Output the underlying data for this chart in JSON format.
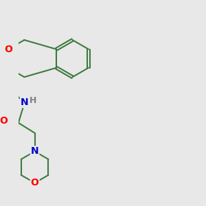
{
  "background_color": "#e8e8e8",
  "bond_color": "#3d7a3d",
  "bond_width": 1.5,
  "atom_colors": {
    "O": "#ff0000",
    "N": "#0000cc",
    "H": "#808080",
    "C": "#3d7a3d"
  },
  "font_size_hetero": 10,
  "font_size_H": 9,
  "figsize": [
    3.0,
    3.0
  ],
  "dpi": 100
}
